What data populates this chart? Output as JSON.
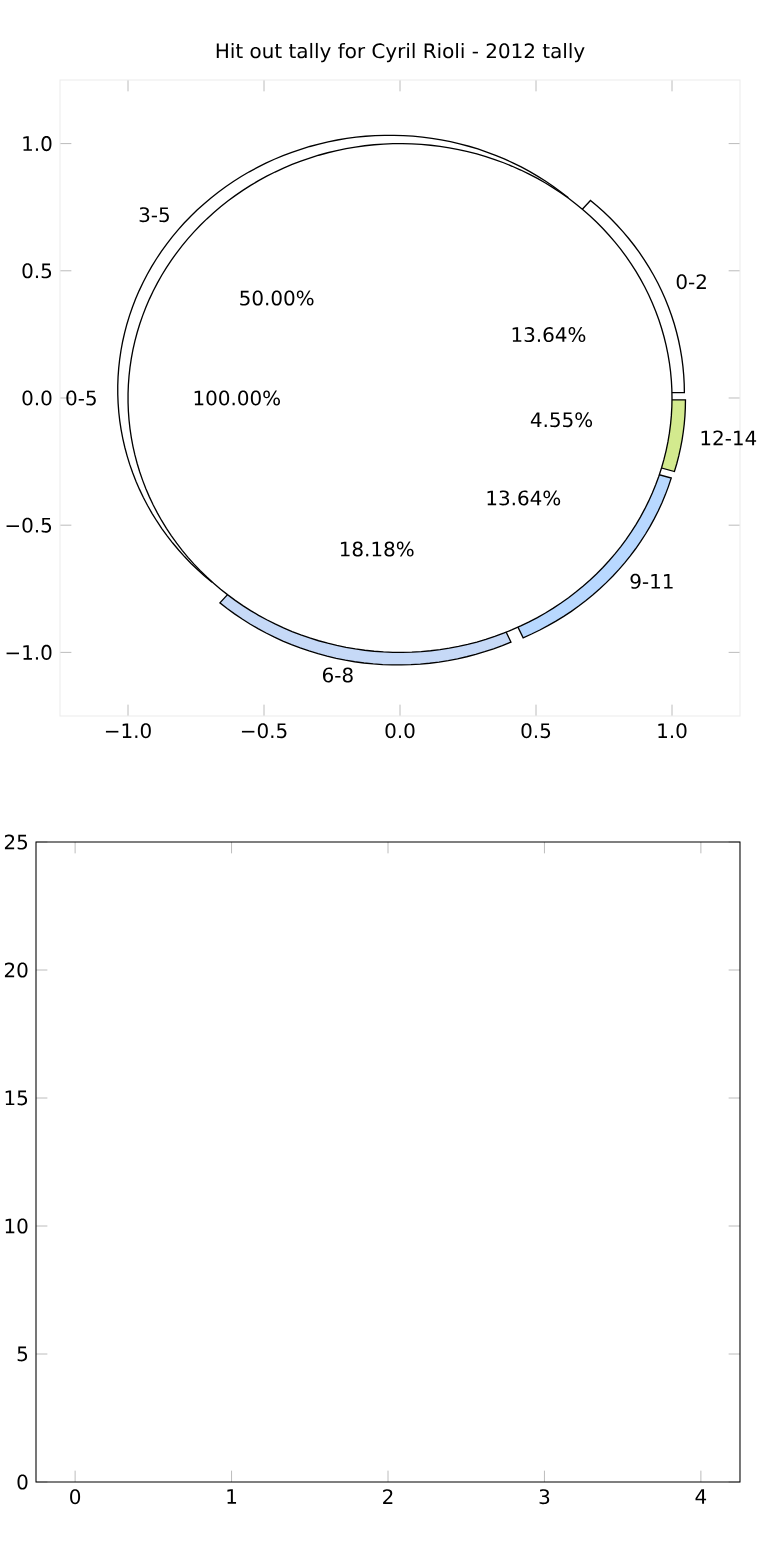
{
  "chart_data": [
    {
      "type": "pie",
      "title": "Hit out tally for Cyril Rioli - 2012 tally",
      "categories": [
        "0-2",
        "3-5",
        "6-8",
        "9-11",
        "12-14"
      ],
      "values": [
        13.64,
        50.0,
        18.18,
        13.64,
        4.55
      ],
      "value_labels": [
        "13.64%",
        "50.00%",
        "18.18%",
        "13.64%",
        "4.55%"
      ],
      "colors": [
        "#ffffff",
        "#ffffff",
        "#c6d9f7",
        "#b8d8ff",
        "#d3ea8e"
      ]
    },
    {
      "type": "pie",
      "categories": [
        "0-5"
      ],
      "values": [
        100
      ],
      "value_labels": [
        "100.00%"
      ],
      "colors": [
        "#ffffff"
      ]
    },
    {
      "type": "line",
      "xlim": [
        -1.25,
        1.25
      ],
      "ylim": [
        -1.25,
        1.25
      ],
      "xticks": [
        {
          "value": -1,
          "label": "−1.0"
        },
        {
          "value": -0.5,
          "label": "−0.5"
        },
        {
          "value": 0,
          "label": "0.0"
        },
        {
          "value": 0.5,
          "label": "0.5"
        },
        {
          "value": 1,
          "label": "1.0"
        }
      ],
      "yticks": [
        {
          "value": -1,
          "label": "−1.0"
        },
        {
          "value": -0.5,
          "label": "−0.5"
        },
        {
          "value": 0,
          "label": "0.0"
        },
        {
          "value": 0.5,
          "label": "0.5"
        },
        {
          "value": 1,
          "label": "1.0"
        }
      ]
    },
    {
      "type": "line",
      "xlim": [
        -0.25,
        4.25
      ],
      "ylim": [
        0,
        25
      ],
      "xticks": [
        0,
        1,
        2,
        3,
        4
      ],
      "yticks": [
        0,
        5,
        10,
        15,
        20,
        25
      ]
    }
  ]
}
